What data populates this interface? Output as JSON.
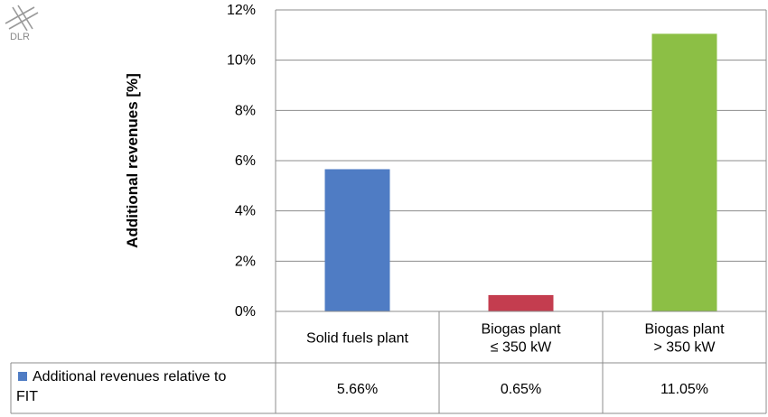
{
  "logo": {
    "text": "DLR",
    "icon": "dlr-logo-icon"
  },
  "chart_data": {
    "type": "bar",
    "title": "",
    "xlabel": "",
    "ylabel": "Additional revenues [%]",
    "ylim": [
      0,
      12
    ],
    "yticks": [
      0,
      2,
      4,
      6,
      8,
      10,
      12
    ],
    "ytick_labels": [
      "0%",
      "2%",
      "4%",
      "6%",
      "8%",
      "10%",
      "12%"
    ],
    "categories": [
      [
        "Solid fuels plant"
      ],
      [
        "Biogas plant",
        "≤ 350 kW"
      ],
      [
        "Biogas plant",
        "> 350 kW"
      ]
    ],
    "series": [
      {
        "name": "Additional revenues relative to FIT",
        "name_lines": [
          "Additional revenues relative to",
          "FIT"
        ],
        "values": [
          5.66,
          0.65,
          11.05
        ],
        "value_labels": [
          "5.66%",
          "0.65%",
          "11.05%"
        ],
        "colors": [
          "#4f7cc4",
          "#c43d4f",
          "#8cbf45"
        ],
        "legend_color": "#4f7cc4"
      }
    ],
    "grid": true,
    "legend": "data-table"
  }
}
